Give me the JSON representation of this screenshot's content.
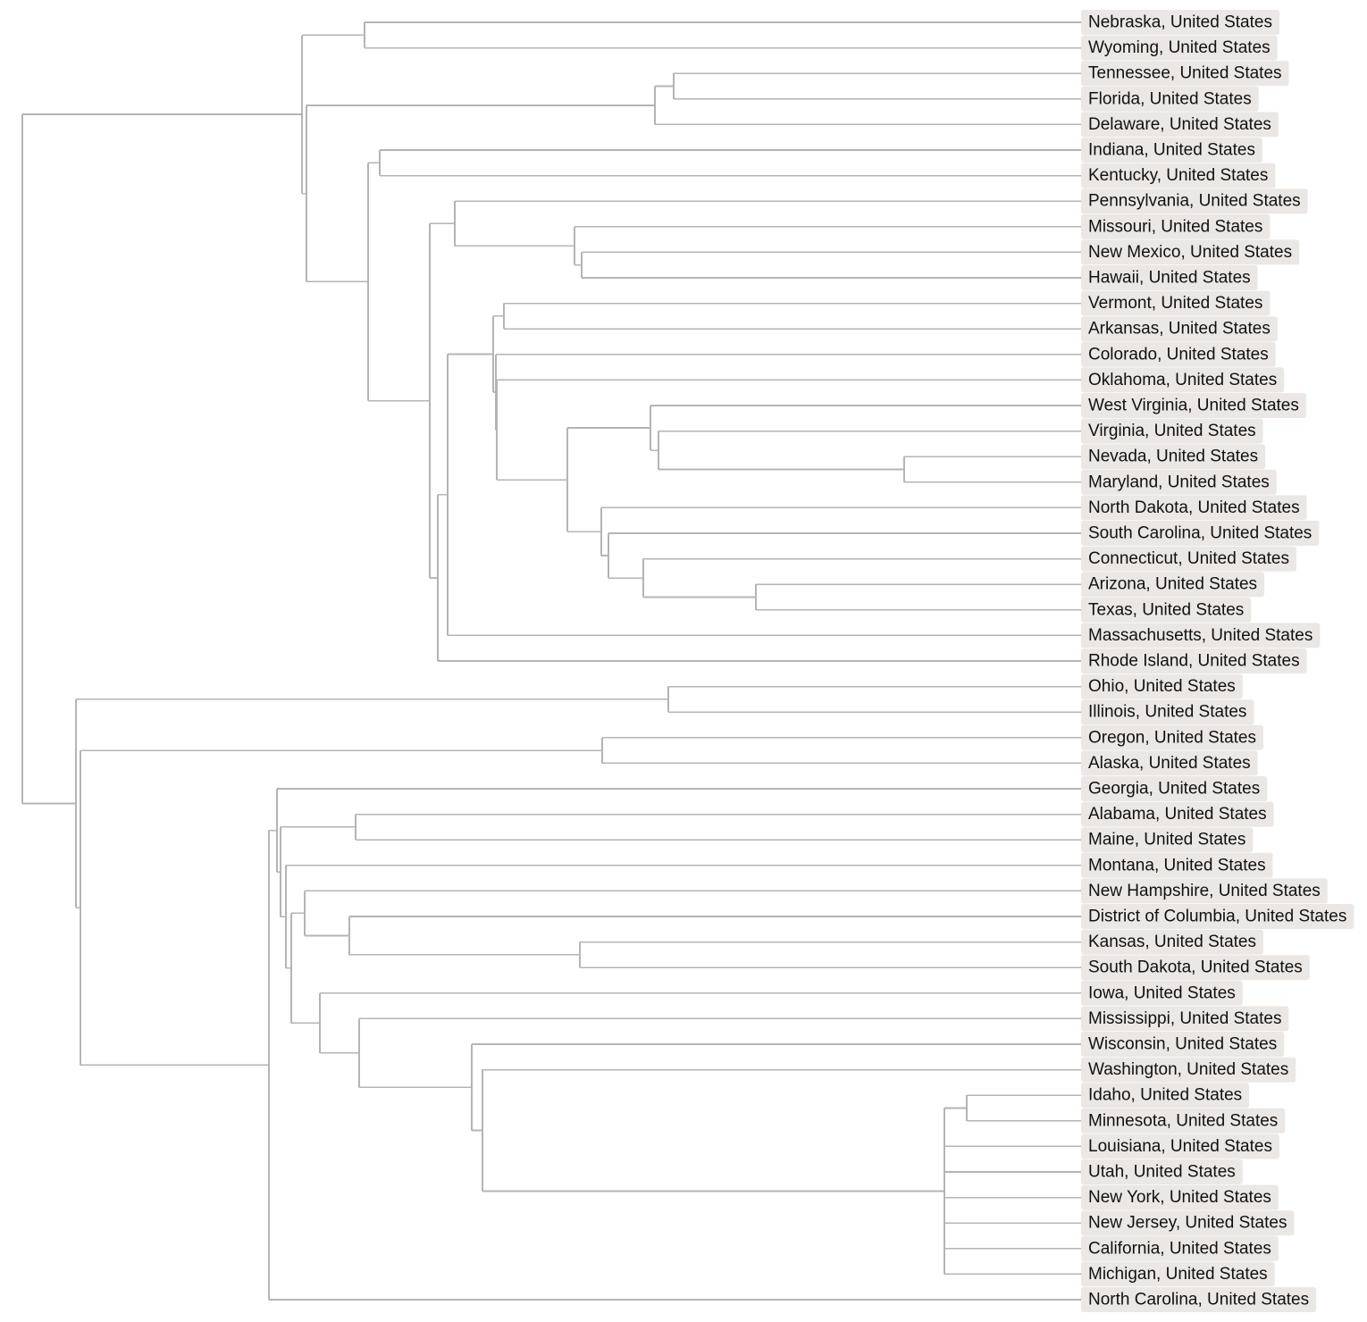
{
  "diagram": {
    "type": "dendrogram",
    "orientation": "left-to-right",
    "label_style": "background-highlight",
    "colors": {
      "branch": "#b4b4b4",
      "label_background": "#ebe7e4",
      "label_text": "#111111",
      "background": "#ffffff"
    },
    "leaves": [
      "Nebraska, United States",
      "Wyoming, United States",
      "Tennessee, United States",
      "Florida, United States",
      "Delaware, United States",
      "Indiana, United States",
      "Kentucky, United States",
      "Pennsylvania, United States",
      "Missouri, United States",
      "New Mexico, United States",
      "Hawaii, United States",
      "Vermont, United States",
      "Arkansas, United States",
      "Colorado, United States",
      "Oklahoma, United States",
      "West Virginia, United States",
      "Virginia, United States",
      "Nevada, United States",
      "Maryland, United States",
      "North Dakota, United States",
      "South Carolina, United States",
      "Connecticut, United States",
      "Arizona, United States",
      "Texas, United States",
      "Massachusetts, United States",
      "Rhode Island, United States",
      "Ohio, United States",
      "Illinois, United States",
      "Oregon, United States",
      "Alaska, United States",
      "Georgia, United States",
      "Alabama, United States",
      "Maine, United States",
      "Montana, United States",
      "New Hampshire, United States",
      "District of Columbia, United States",
      "Kansas, United States",
      "South Dakota, United States",
      "Iowa, United States",
      "Mississippi, United States",
      "Wisconsin, United States",
      "Washington, United States",
      "Idaho, United States",
      "Minnesota, United States",
      "Louisiana, United States",
      "Utah, United States",
      "New York, United States",
      "New Jersey, United States",
      "California, United States",
      "Michigan, United States",
      "North Carolina, United States"
    ]
  }
}
